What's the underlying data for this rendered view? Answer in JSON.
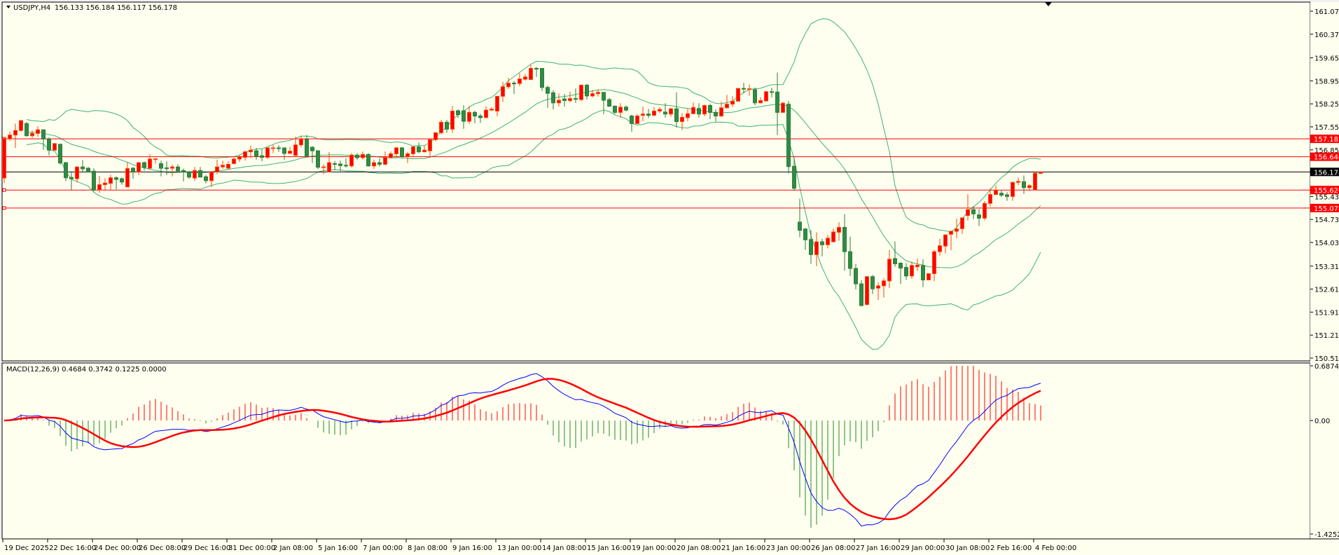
{
  "header": {
    "symbol": "USDJPY,H4",
    "ohlc_text": "156.133 156.184 156.117 156.178",
    "macd_label": "MACD(12,26,9) 0.4684 0.3742 0.1225 0.0000"
  },
  "colors": {
    "background": "#fffff0",
    "bull_candle": "#ff0000",
    "bull_outline": "#ff4500",
    "bear_candle": "#2e8b47",
    "bear_outline": "#2e7d32",
    "bollinger": "#3cb371",
    "level_line": "#ff0000",
    "bid_line": "#000000",
    "macd_line": "#0000ff",
    "signal_line": "#ff0000",
    "hist_positive": "#ff0000",
    "hist_negative": "#228b22"
  },
  "chart_data": [
    {
      "type": "candlestick",
      "title": "USDJPY,H4",
      "timeframe": "H4",
      "ylim": [
        150.51,
        161.07
      ],
      "y_ticks": [
        "161.070",
        "160.370",
        "159.650",
        "158.950",
        "158.250",
        "157.550",
        "156.850",
        "155.430",
        "154.730",
        "154.030",
        "153.310",
        "152.610",
        "151.910",
        "151.210",
        "150.510"
      ],
      "x_ticks": [
        "19 Dec 2025",
        "22 Dec 16:00",
        "24 Dec 00:00",
        "26 Dec 08:00",
        "29 Dec 16:00",
        "31 Dec 00:00",
        "2 Jan 08:00",
        "5 Jan 16:00",
        "7 Jan 00:00",
        "8 Jan 08:00",
        "9 Jan 16:00",
        "13 Jan 00:00",
        "14 Jan 08:00",
        "15 Jan 16:00",
        "19 Jan 00:00",
        "20 Jan 08:00",
        "21 Jan 16:00",
        "23 Jan 00:00",
        "26 Jan 08:00",
        "27 Jan 16:00",
        "29 Jan 00:00",
        "30 Jan 08:00",
        "2 Feb 16:00",
        "4 Feb 00:00"
      ],
      "x_tick_every_bars": 8,
      "indicators": [
        "Bollinger Bands"
      ],
      "horizontal_levels": [
        {
          "price": 157.185,
          "label": "157.185"
        },
        {
          "price": 156.64,
          "label": "156.640"
        },
        {
          "price": 155.626,
          "label": "155.626"
        },
        {
          "price": 155.078,
          "label": "155.078"
        }
      ],
      "bid": {
        "price": 156.178,
        "label": "156.178"
      },
      "ohlc": [
        [
          155.99,
          157.23,
          155.84,
          157.19
        ],
        [
          157.19,
          157.4,
          157.12,
          157.3
        ],
        [
          157.3,
          157.65,
          156.91,
          157.44
        ],
        [
          157.44,
          157.76,
          157.39,
          157.74
        ],
        [
          157.65,
          157.7,
          157.25,
          157.28
        ],
        [
          157.28,
          157.44,
          157.21,
          157.35
        ],
        [
          157.35,
          157.57,
          157.25,
          157.46
        ],
        [
          157.46,
          157.46,
          156.85,
          157.18
        ],
        [
          157.18,
          157.23,
          156.68,
          156.84
        ],
        [
          156.84,
          157.06,
          156.84,
          157.04
        ],
        [
          157.02,
          157.04,
          156.4,
          156.45
        ],
        [
          156.46,
          156.48,
          155.9,
          156.0
        ],
        [
          156.01,
          156.2,
          155.63,
          155.97
        ],
        [
          155.97,
          156.34,
          155.86,
          156.33
        ],
        [
          156.33,
          156.54,
          156.18,
          156.27
        ],
        [
          156.29,
          156.33,
          156.15,
          156.18
        ],
        [
          156.2,
          156.29,
          155.58,
          155.63
        ],
        [
          155.63,
          156.06,
          155.54,
          155.79
        ],
        [
          155.79,
          155.99,
          155.63,
          155.84
        ],
        [
          155.83,
          156.09,
          155.63,
          156.0
        ],
        [
          156.0,
          156.04,
          155.65,
          155.95
        ],
        [
          155.97,
          156.02,
          155.79,
          155.87
        ],
        [
          155.72,
          156.47,
          155.72,
          156.28
        ],
        [
          156.29,
          156.33,
          155.97,
          156.18
        ],
        [
          156.18,
          156.48,
          156.08,
          156.46
        ],
        [
          156.46,
          156.5,
          156.22,
          156.31
        ],
        [
          156.29,
          156.72,
          156.27,
          156.57
        ],
        [
          156.57,
          156.58,
          156.43,
          156.58
        ],
        [
          156.43,
          156.52,
          156.04,
          156.29
        ],
        [
          156.3,
          156.5,
          156.08,
          156.29
        ],
        [
          156.29,
          156.4,
          156.04,
          156.33
        ],
        [
          156.33,
          156.41,
          156.16,
          156.21
        ],
        [
          156.22,
          156.28,
          155.89,
          156.18
        ],
        [
          156.18,
          156.21,
          155.97,
          156.02
        ],
        [
          155.99,
          156.33,
          155.91,
          156.22
        ],
        [
          156.22,
          156.33,
          156.01,
          156.02
        ],
        [
          156.03,
          156.08,
          155.83,
          155.91
        ],
        [
          155.91,
          156.2,
          155.72,
          156.18
        ],
        [
          156.18,
          156.55,
          156.11,
          156.33
        ],
        [
          156.33,
          156.52,
          156.27,
          156.38
        ],
        [
          156.29,
          156.5,
          156.26,
          156.41
        ],
        [
          156.43,
          156.62,
          156.41,
          156.57
        ],
        [
          156.57,
          156.69,
          156.48,
          156.64
        ],
        [
          156.62,
          156.82,
          156.52,
          156.79
        ],
        [
          156.79,
          156.98,
          156.6,
          156.84
        ],
        [
          156.82,
          156.91,
          156.55,
          156.65
        ],
        [
          156.67,
          156.87,
          156.5,
          156.62
        ],
        [
          156.62,
          156.93,
          156.57,
          156.91
        ],
        [
          156.89,
          157.0,
          156.75,
          156.91
        ],
        [
          156.91,
          156.99,
          156.79,
          156.89
        ],
        [
          156.91,
          156.91,
          156.55,
          156.74
        ],
        [
          156.74,
          156.94,
          156.74,
          156.81
        ],
        [
          156.68,
          157.25,
          156.66,
          157.0
        ],
        [
          157.0,
          157.28,
          156.93,
          157.18
        ],
        [
          157.17,
          157.3,
          156.66,
          156.66
        ],
        [
          156.93,
          156.96,
          156.45,
          156.82
        ],
        [
          156.82,
          156.84,
          156.26,
          156.32
        ],
        [
          156.31,
          156.41,
          156.11,
          156.33
        ],
        [
          156.18,
          156.78,
          156.18,
          156.46
        ],
        [
          156.43,
          156.51,
          156.23,
          156.42
        ],
        [
          156.42,
          156.52,
          156.16,
          156.37
        ],
        [
          156.38,
          156.59,
          156.31,
          156.36
        ],
        [
          156.36,
          156.75,
          156.31,
          156.69
        ],
        [
          156.69,
          156.75,
          156.55,
          156.61
        ],
        [
          156.61,
          156.8,
          156.55,
          156.71
        ],
        [
          156.71,
          156.75,
          156.34,
          156.36
        ],
        [
          156.36,
          156.55,
          156.27,
          156.46
        ],
        [
          156.46,
          156.59,
          156.34,
          156.41
        ],
        [
          156.41,
          156.8,
          156.38,
          156.62
        ],
        [
          156.61,
          156.8,
          156.59,
          156.73
        ],
        [
          156.73,
          156.94,
          156.61,
          156.91
        ],
        [
          156.91,
          156.94,
          156.61,
          156.65
        ],
        [
          156.65,
          156.79,
          156.45,
          156.73
        ],
        [
          156.73,
          156.98,
          156.66,
          156.94
        ],
        [
          156.94,
          157.07,
          156.75,
          156.79
        ],
        [
          156.79,
          156.98,
          156.77,
          156.84
        ],
        [
          156.82,
          157.17,
          156.62,
          157.16
        ],
        [
          157.16,
          157.39,
          157.11,
          157.37
        ],
        [
          157.37,
          157.76,
          157.32,
          157.69
        ],
        [
          157.69,
          157.76,
          157.37,
          157.48
        ],
        [
          157.48,
          158.18,
          157.37,
          158.03
        ],
        [
          158.04,
          158.08,
          157.82,
          157.92
        ],
        [
          158.04,
          158.21,
          157.49,
          157.72
        ],
        [
          157.72,
          158.18,
          157.64,
          157.99
        ],
        [
          157.99,
          158.04,
          157.66,
          157.88
        ],
        [
          157.88,
          157.95,
          157.67,
          157.83
        ],
        [
          157.83,
          158.17,
          157.82,
          158.06
        ],
        [
          158.06,
          158.15,
          158.03,
          158.09
        ],
        [
          158.03,
          158.48,
          157.87,
          158.48
        ],
        [
          158.48,
          158.92,
          158.31,
          158.77
        ],
        [
          158.77,
          159.04,
          158.7,
          158.88
        ],
        [
          158.88,
          158.95,
          158.55,
          158.86
        ],
        [
          158.87,
          159.18,
          158.79,
          159.01
        ],
        [
          159.0,
          159.16,
          158.96,
          159.07
        ],
        [
          158.99,
          159.44,
          158.99,
          159.33
        ],
        [
          159.33,
          159.37,
          159.07,
          159.32
        ],
        [
          159.33,
          159.33,
          158.64,
          158.75
        ],
        [
          158.75,
          158.81,
          158.13,
          158.57
        ],
        [
          158.59,
          158.67,
          158.08,
          158.28
        ],
        [
          158.28,
          158.57,
          158.17,
          158.36
        ],
        [
          158.4,
          158.55,
          158.17,
          158.35
        ],
        [
          158.35,
          158.62,
          158.29,
          158.41
        ],
        [
          158.41,
          158.72,
          158.28,
          158.4
        ],
        [
          158.38,
          158.84,
          158.33,
          158.82
        ],
        [
          158.82,
          158.86,
          158.38,
          158.49
        ],
        [
          158.49,
          158.67,
          158.45,
          158.56
        ],
        [
          158.56,
          158.69,
          158.47,
          158.6
        ],
        [
          158.6,
          158.61,
          157.94,
          158.36
        ],
        [
          158.38,
          158.43,
          158.15,
          158.18
        ],
        [
          158.18,
          158.2,
          157.94,
          157.99
        ],
        [
          157.99,
          158.27,
          157.82,
          158.15
        ],
        [
          158.15,
          158.2,
          158.02,
          158.06
        ],
        [
          157.88,
          157.92,
          157.4,
          157.65
        ],
        [
          157.65,
          157.94,
          157.65,
          157.88
        ],
        [
          157.9,
          158.17,
          157.72,
          157.94
        ],
        [
          157.94,
          158.1,
          157.82,
          157.9
        ],
        [
          157.9,
          158.15,
          157.88,
          158.03
        ],
        [
          158.03,
          158.15,
          157.97,
          158.08
        ],
        [
          158.0,
          158.27,
          157.83,
          157.94
        ],
        [
          157.94,
          158.13,
          157.86,
          158.1
        ],
        [
          158.1,
          158.6,
          157.53,
          157.71
        ],
        [
          157.71,
          157.97,
          157.45,
          157.84
        ],
        [
          157.83,
          158.1,
          157.72,
          157.95
        ],
        [
          157.95,
          158.29,
          157.94,
          158.14
        ],
        [
          158.11,
          158.27,
          157.83,
          157.94
        ],
        [
          157.94,
          158.23,
          157.87,
          158.2
        ],
        [
          158.2,
          158.26,
          157.78,
          157.99
        ],
        [
          157.99,
          158.08,
          157.71,
          157.88
        ],
        [
          157.88,
          158.31,
          157.85,
          158.13
        ],
        [
          158.13,
          158.52,
          158.1,
          158.24
        ],
        [
          158.24,
          158.48,
          158.15,
          158.33
        ],
        [
          158.33,
          158.72,
          158.33,
          158.72
        ],
        [
          158.72,
          158.89,
          158.57,
          158.7
        ],
        [
          158.7,
          158.84,
          158.5,
          158.71
        ],
        [
          158.68,
          158.75,
          158.21,
          158.28
        ],
        [
          158.28,
          158.45,
          158.26,
          158.35
        ],
        [
          158.34,
          158.65,
          158.31,
          158.62
        ],
        [
          158.62,
          158.74,
          158.45,
          158.6
        ],
        [
          158.61,
          159.2,
          157.3,
          157.99
        ],
        [
          157.99,
          158.31,
          157.97,
          158.27
        ],
        [
          158.24,
          158.34,
          156.13,
          156.34
        ],
        [
          156.35,
          156.62,
          155.6,
          155.68
        ],
        [
          154.65,
          155.36,
          154.19,
          154.4
        ],
        [
          154.44,
          154.47,
          153.8,
          154.11
        ],
        [
          154.12,
          154.41,
          153.38,
          153.66
        ],
        [
          153.66,
          154.34,
          153.31,
          154.05
        ],
        [
          154.05,
          154.14,
          153.61,
          153.96
        ],
        [
          153.96,
          154.26,
          153.85,
          154.16
        ],
        [
          154.05,
          154.46,
          154.04,
          154.35
        ],
        [
          154.34,
          154.65,
          154.08,
          154.49
        ],
        [
          154.49,
          154.89,
          153.17,
          153.75
        ],
        [
          153.75,
          154.21,
          153.01,
          153.24
        ],
        [
          153.24,
          153.38,
          152.6,
          152.77
        ],
        [
          152.77,
          152.89,
          152.08,
          152.11
        ],
        [
          152.14,
          152.99,
          152.11,
          152.99
        ],
        [
          152.99,
          153.04,
          152.46,
          152.62
        ],
        [
          152.64,
          152.82,
          152.28,
          152.71
        ],
        [
          152.71,
          152.94,
          152.35,
          152.86
        ],
        [
          152.86,
          153.8,
          152.64,
          153.52
        ],
        [
          153.54,
          154.06,
          153.29,
          153.38
        ],
        [
          153.4,
          153.43,
          152.77,
          153.25
        ],
        [
          153.27,
          153.4,
          152.89,
          153.01
        ],
        [
          153.01,
          153.45,
          152.92,
          153.33
        ],
        [
          153.29,
          153.54,
          153.17,
          153.34
        ],
        [
          153.33,
          153.52,
          152.67,
          152.89
        ],
        [
          152.89,
          153.08,
          152.89,
          153.08
        ],
        [
          153.08,
          153.8,
          152.85,
          153.75
        ],
        [
          153.75,
          154.14,
          153.63,
          153.93
        ],
        [
          153.92,
          154.28,
          153.7,
          154.26
        ],
        [
          154.28,
          154.39,
          153.79,
          154.37
        ],
        [
          154.37,
          154.76,
          154.16,
          154.44
        ],
        [
          154.45,
          154.78,
          154.29,
          154.78
        ],
        [
          154.85,
          155.5,
          154.7,
          155.03
        ],
        [
          155.03,
          155.14,
          154.74,
          154.9
        ],
        [
          154.87,
          155.05,
          154.53,
          154.77
        ],
        [
          154.77,
          155.29,
          154.7,
          155.22
        ],
        [
          155.22,
          155.68,
          155.12,
          155.49
        ],
        [
          155.49,
          155.77,
          155.49,
          155.62
        ],
        [
          155.53,
          155.61,
          155.41,
          155.47
        ],
        [
          155.48,
          155.56,
          155.3,
          155.43
        ],
        [
          155.43,
          155.88,
          155.3,
          155.86
        ],
        [
          155.86,
          156.0,
          155.77,
          155.89
        ],
        [
          155.88,
          156.07,
          155.51,
          155.7
        ],
        [
          155.7,
          155.81,
          155.6,
          155.76
        ],
        [
          155.63,
          156.18,
          155.63,
          156.14
        ],
        [
          156.133,
          156.184,
          156.117,
          156.178
        ]
      ]
    },
    {
      "type": "macd",
      "title": "MACD(12,26,9)",
      "params": {
        "fast": 12,
        "slow": 26,
        "signal": 9
      },
      "values_shown": [
        0.4684,
        0.3742,
        0.1225,
        0.0
      ],
      "ylim": [
        -1.4252,
        0.6874
      ],
      "y_ticks": [
        "0.6874",
        "0.00",
        "-1.4252"
      ]
    }
  ]
}
